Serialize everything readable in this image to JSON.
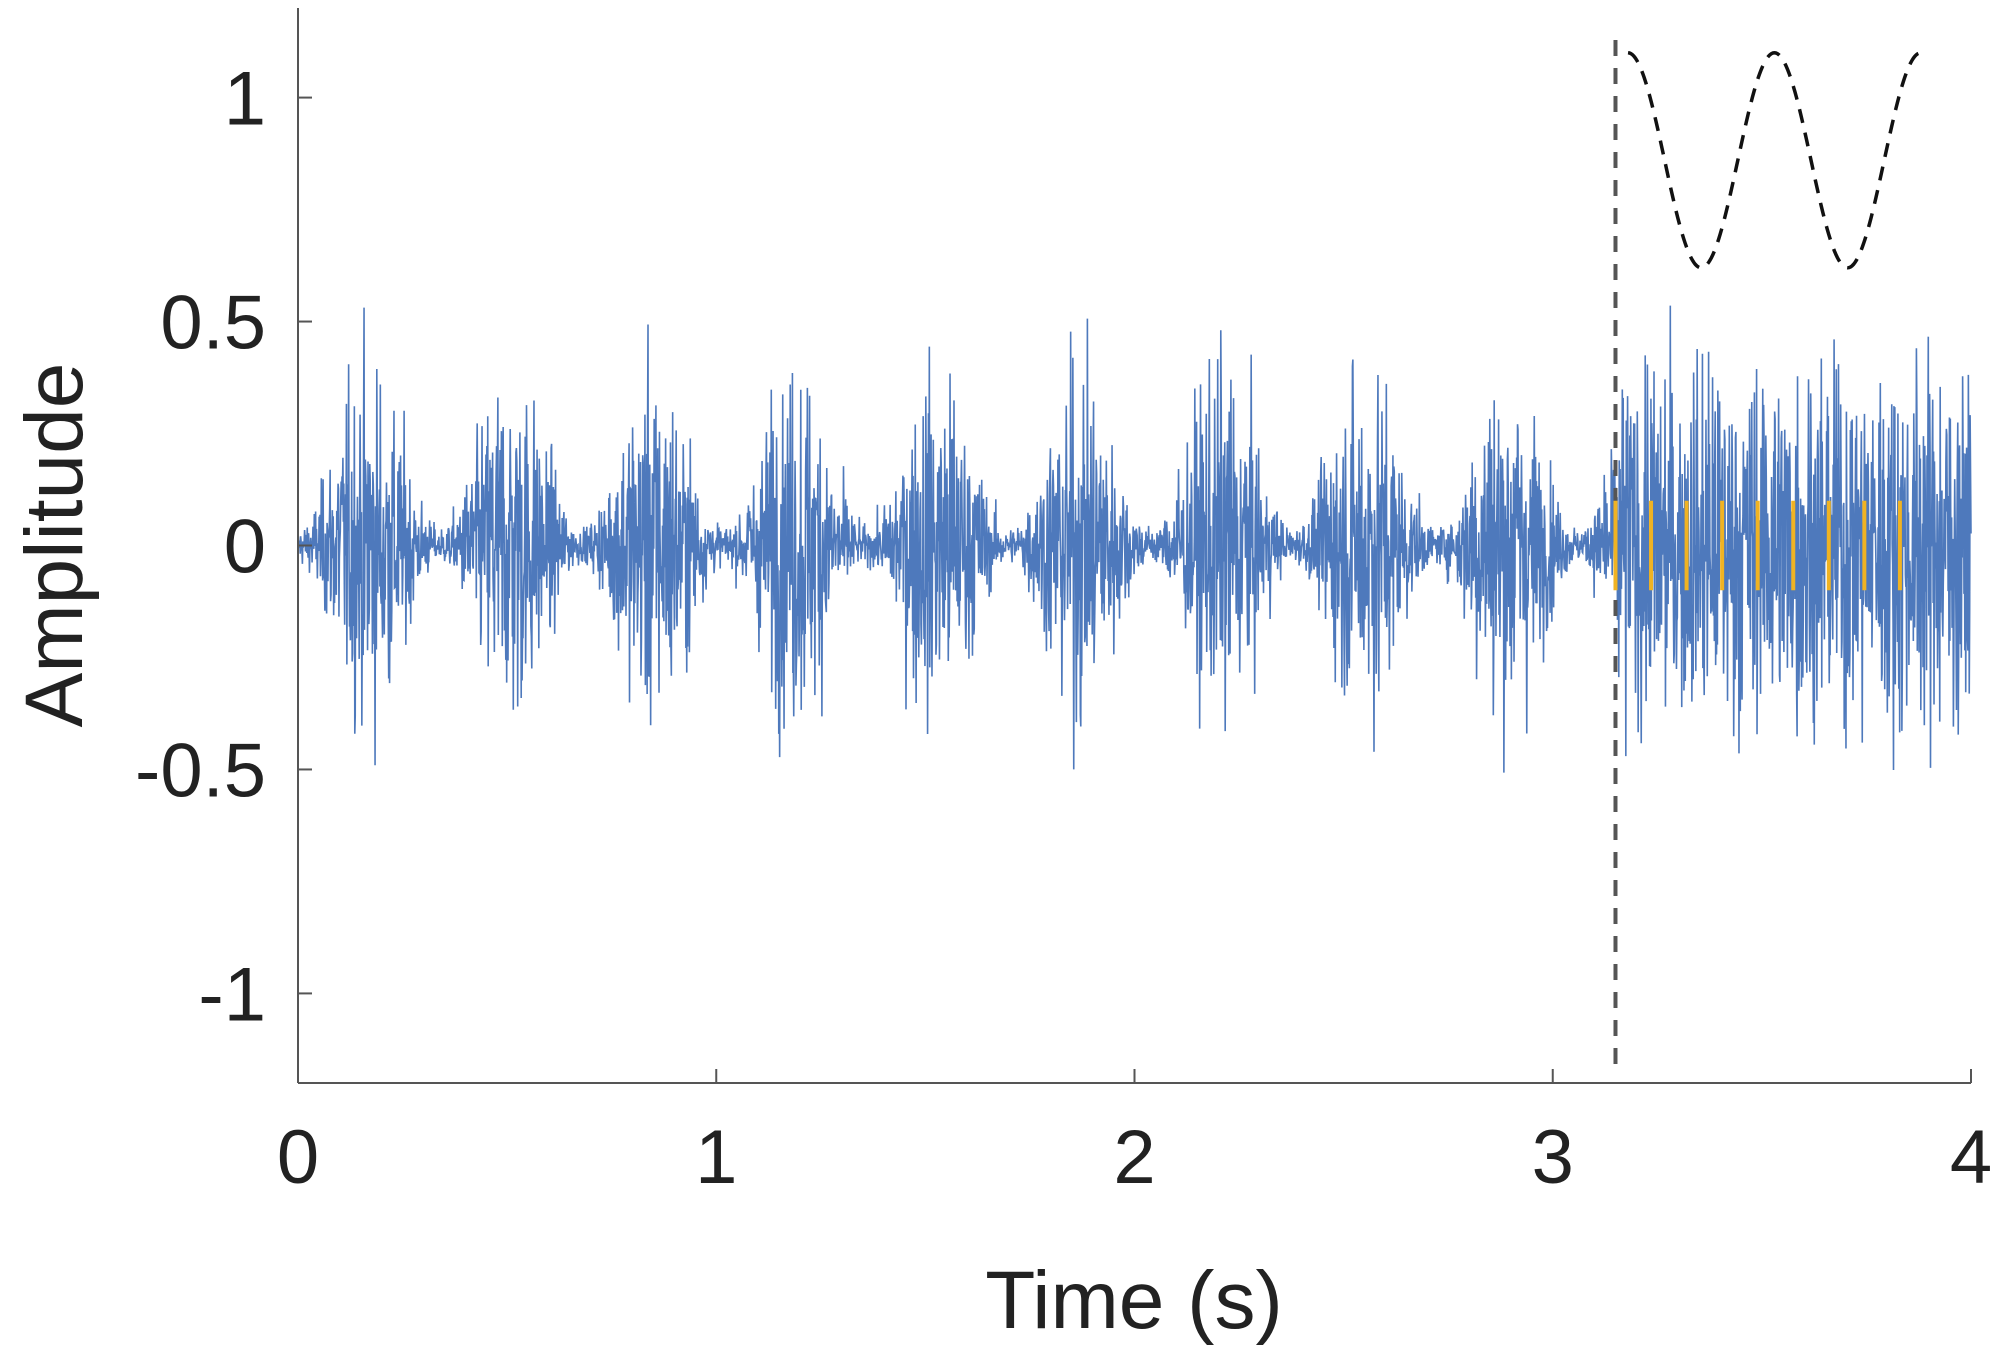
{
  "chart_data": {
    "type": "line",
    "xlabel": "Time (s)",
    "ylabel": "Amplitude",
    "xlim": [
      0,
      4
    ],
    "ylim": [
      -1.2,
      1.2
    ],
    "x_ticks": [
      0,
      1,
      2,
      3,
      4
    ],
    "x_tick_labels": [
      "0",
      "1",
      "2",
      "3",
      "4"
    ],
    "y_ticks": [
      1,
      0.5,
      0,
      -0.5,
      -1
    ],
    "y_tick_labels": [
      "1",
      "0.5",
      "0",
      "-0.5",
      "-1"
    ],
    "grid": false,
    "legend": "none",
    "series": [
      {
        "description": "amplitude-modulated noise signal",
        "color": "#4472b8",
        "modulated_segment": {
          "x_range": [
            0,
            3.15
          ],
          "modulation_period": 0.34,
          "peak_envelope": 0.5,
          "trough_envelope": 0.05
        },
        "unmodulated_segment": {
          "x_range": [
            3.15,
            4.0
          ],
          "envelope": 0.5
        }
      }
    ],
    "annotations": {
      "onset_line": {
        "x": 3.15,
        "style": "dashed",
        "color": "#555555"
      },
      "modulation_cycle_markers": {
        "color": "#f0b323",
        "x": [
          3.15,
          3.235,
          3.32,
          3.405,
          3.49,
          3.575,
          3.66,
          3.745,
          3.83
        ],
        "y_range": [
          -0.1,
          0.1
        ]
      },
      "envelope_sketch": {
        "style": "dashed",
        "color": "#111111",
        "x_range": [
          3.18,
          3.88
        ],
        "y_range": [
          0.62,
          1.1
        ],
        "cycles": 2
      }
    }
  }
}
